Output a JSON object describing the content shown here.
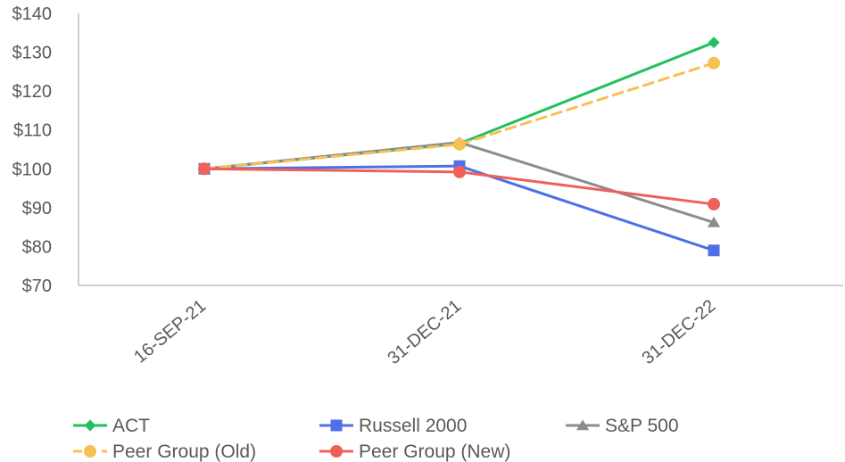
{
  "chart_data": {
    "type": "line",
    "title": "",
    "xlabel": "",
    "ylabel": "",
    "categories": [
      "16-SEP-21",
      "31-DEC-21",
      "31-DEC-22"
    ],
    "ylim": [
      70,
      140
    ],
    "yticks": [
      70,
      80,
      90,
      100,
      110,
      120,
      130,
      140
    ],
    "ytick_labels": [
      "$70",
      "$80",
      "$90",
      "$100",
      "$110",
      "$120",
      "$130",
      "$140"
    ],
    "grid": false,
    "legend_position": "bottom",
    "series": [
      {
        "name": "ACT",
        "values": [
          100,
          106.5,
          132.5
        ],
        "color": "#20c05c",
        "marker": "diamond",
        "dashed": false
      },
      {
        "name": "Russell 2000",
        "values": [
          100,
          100.7,
          79
        ],
        "color": "#4f6ee8",
        "marker": "square",
        "dashed": false
      },
      {
        "name": "S&P 500",
        "values": [
          100,
          106.8,
          86.2
        ],
        "color": "#8c8c8c",
        "marker": "triangle",
        "dashed": false
      },
      {
        "name": "Peer Group (Old)",
        "values": [
          100,
          106.3,
          127.2
        ],
        "color": "#f5c055",
        "marker": "circle",
        "dashed": true
      },
      {
        "name": "Peer Group (New)",
        "values": [
          100,
          99.2,
          90.9
        ],
        "color": "#f0605a",
        "marker": "circle",
        "dashed": false
      }
    ]
  }
}
